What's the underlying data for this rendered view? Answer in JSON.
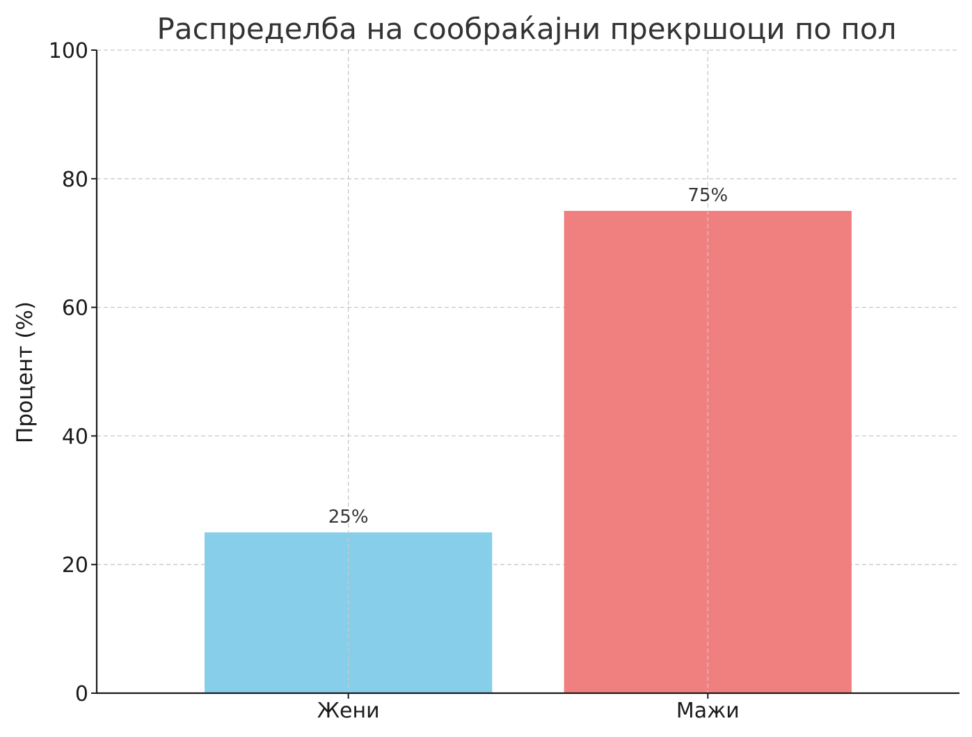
{
  "chart_data": {
    "type": "bar",
    "title": "Распределба на сообраќајни прекршоци по пол",
    "xlabel": "",
    "ylabel": "Процент (%)",
    "categories": [
      "Жени",
      "Мажи"
    ],
    "values": [
      25,
      75
    ],
    "data_labels": [
      "25%",
      "75%"
    ],
    "colors": [
      "#87ceeb",
      "#f08080"
    ],
    "ylim": [
      0,
      100
    ],
    "yticks": [
      0,
      20,
      40,
      60,
      80,
      100
    ],
    "grid": true,
    "legend": "none"
  }
}
